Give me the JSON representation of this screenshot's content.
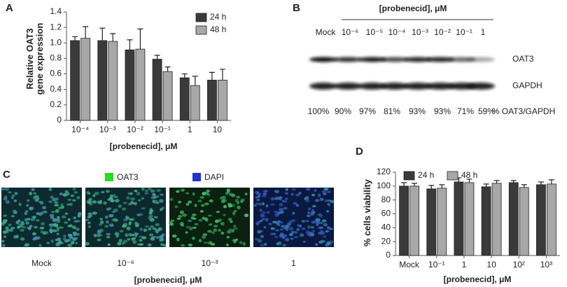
{
  "chart_data": [
    {
      "type": "bar",
      "panel_label": "A",
      "ylabel": "Relative OAT3 gene expression",
      "xlabel": "[probenecid], μM",
      "categories": [
        "10⁻⁴",
        "10⁻³",
        "10⁻²",
        "10⁻¹",
        "1",
        "10"
      ],
      "series": [
        {
          "name": "24 h",
          "color": "#3a3a3a",
          "values": [
            1.03,
            1.03,
            0.91,
            0.79,
            0.55,
            0.52
          ],
          "errors": [
            0.05,
            0.16,
            0.13,
            0.05,
            0.05,
            0.1
          ]
        },
        {
          "name": "48 h",
          "color": "#a8a8a8",
          "values": [
            1.06,
            1.02,
            0.92,
            0.63,
            0.45,
            0.52
          ],
          "errors": [
            0.15,
            0.1,
            0.26,
            0.06,
            0.12,
            0.14
          ]
        }
      ],
      "ylim": [
        0,
        1.4
      ],
      "yticks": [
        0,
        {
          "value": 0.2,
          "label": "0.2"
        },
        {
          "value": 0.4,
          "label": "0.4"
        },
        {
          "value": 0.6,
          "label": "0.6"
        },
        {
          "value": 0.8,
          "label": "0.8"
        },
        {
          "value": 1,
          "label": "1.0"
        },
        {
          "value": 1.2,
          "label": "1.2"
        },
        {
          "value": 1.4,
          "label": "1.4"
        }
      ],
      "legend": "upper right"
    },
    {
      "type": "bar",
      "panel_label": "D",
      "ylabel": "% cells viability",
      "xlabel": "[probenecid], μM",
      "categories": [
        "Mock",
        "10⁻¹",
        "1",
        "10",
        "10²",
        "10³"
      ],
      "series": [
        {
          "name": "24 h",
          "color": "#3a3a3a",
          "values": [
            100,
            96,
            106,
            99,
            105,
            102
          ],
          "errors": [
            5,
            5,
            6,
            4,
            3,
            4
          ]
        },
        {
          "name": "48 h",
          "color": "#a8a8a8",
          "values": [
            100,
            97,
            105,
            104,
            98,
            103
          ],
          "errors": [
            4,
            5,
            5,
            4,
            4,
            6
          ]
        }
      ],
      "ylim": [
        0,
        120
      ],
      "yticks": [
        0,
        20,
        40,
        60,
        80,
        100,
        120
      ],
      "legend": "upper left"
    }
  ],
  "blot": {
    "panel_label": "B",
    "title": "[probenecid], μM",
    "lanes": [
      "Mock",
      "10⁻⁶",
      "10⁻⁵",
      "10⁻⁴",
      "10⁻³",
      "10⁻²",
      "10⁻¹",
      "1"
    ],
    "bands": [
      "OAT3",
      "GAPDH"
    ],
    "ratios": [
      "100%",
      "90%",
      "97%",
      "81%",
      "93%",
      "93%",
      "71%",
      "59%"
    ],
    "ratio_label": "% OAT3/GAPDH"
  },
  "micrographs": {
    "panel_label": "C",
    "stains": [
      {
        "name": "OAT3",
        "color": "#22dd22"
      },
      {
        "name": "DAPI",
        "color": "#2233cc"
      }
    ],
    "images": [
      "Mock",
      "10⁻⁶",
      "10⁻³",
      "1"
    ],
    "xlabel": "[probenecid], μM"
  }
}
